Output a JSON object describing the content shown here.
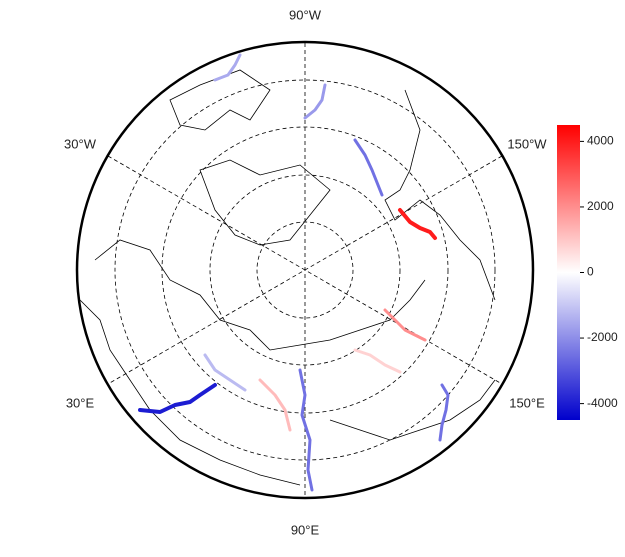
{
  "map": {
    "labels": {
      "top": "90°W",
      "left_upper": "30°W",
      "right_upper": "150°W",
      "left_lower": "30°E",
      "right_lower": "150°E",
      "bottom": "90°E"
    },
    "colorbar": {
      "lim": [
        -4500,
        4500
      ],
      "ticks": [
        4000,
        2000,
        0,
        -2000,
        -4000
      ]
    },
    "rivers": {
      "values": [
        -2500,
        -4000,
        2000,
        4000,
        -2500,
        -1500,
        -1800,
        -2500,
        800,
        -1200,
        1200
      ]
    }
  }
}
